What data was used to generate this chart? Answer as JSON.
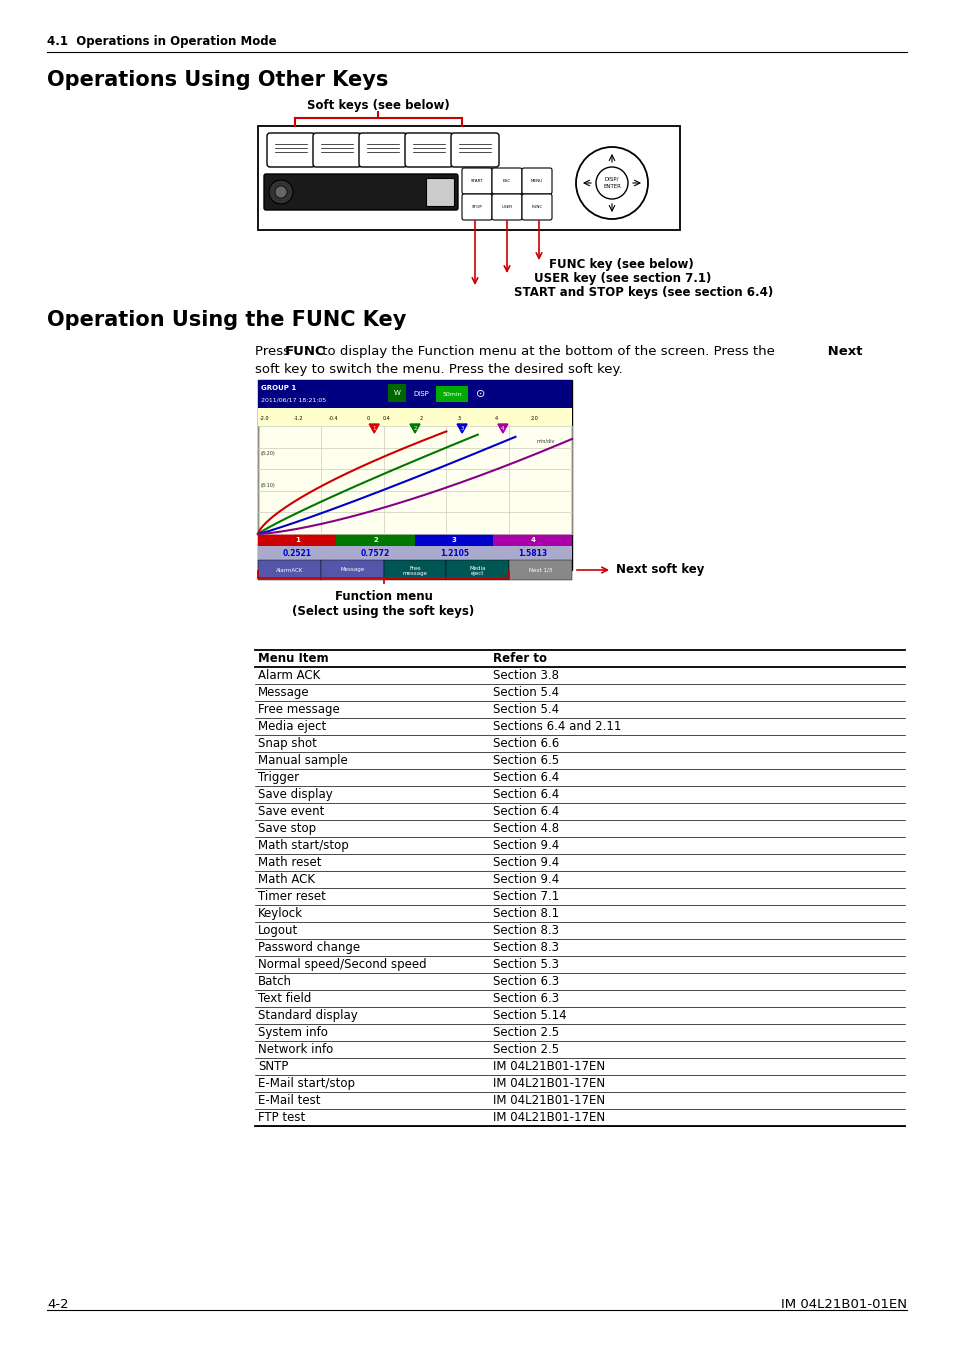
{
  "page_header": "4.1  Operations in Operation Mode",
  "section1_title": "Operations Using Other Keys",
  "section2_title": "Operation Using the FUNC Key",
  "label_softkeys": "Soft keys (see below)",
  "label_func": "FUNC key (see below)",
  "label_user": "USER key (see section 7.1)",
  "label_start_stop": "START and STOP keys (see section 6.4)",
  "label_next_softkey": "Next soft key",
  "label_function_menu": "Function menu\n(Select using the soft keys)",
  "table_header": [
    "Menu Item",
    "Refer to"
  ],
  "table_rows": [
    [
      "Alarm ACK",
      "Section 3.8"
    ],
    [
      "Message",
      "Section 5.4"
    ],
    [
      "Free message",
      "Section 5.4"
    ],
    [
      "Media eject",
      "Sections 6.4 and 2.11"
    ],
    [
      "Snap shot",
      "Section 6.6"
    ],
    [
      "Manual sample",
      "Section 6.5"
    ],
    [
      "Trigger",
      "Section 6.4"
    ],
    [
      "Save display",
      "Section 6.4"
    ],
    [
      "Save event",
      "Section 6.4"
    ],
    [
      "Save stop",
      "Section 4.8"
    ],
    [
      "Math start/stop",
      "Section 9.4"
    ],
    [
      "Math reset",
      "Section 9.4"
    ],
    [
      "Math ACK",
      "Section 9.4"
    ],
    [
      "Timer reset",
      "Section 7.1"
    ],
    [
      "Keylock",
      "Section 8.1"
    ],
    [
      "Logout",
      "Section 8.3"
    ],
    [
      "Password change",
      "Section 8.3"
    ],
    [
      "Normal speed/Second speed",
      "Section 5.3"
    ],
    [
      "Batch",
      "Section 6.3"
    ],
    [
      "Text field",
      "Section 6.3"
    ],
    [
      "Standard display",
      "Section 5.14"
    ],
    [
      "System info",
      "Section 2.5"
    ],
    [
      "Network info",
      "Section 2.5"
    ],
    [
      "SNTP",
      "IM 04L21B01-17EN"
    ],
    [
      "E-Mail start/stop",
      "IM 04L21B01-17EN"
    ],
    [
      "E-Mail test",
      "IM 04L21B01-17EN"
    ],
    [
      "FTP test",
      "IM 04L21B01-17EN"
    ]
  ],
  "footer_left": "4-2",
  "footer_right": "IM 04L21B01-01EN",
  "bg_color": "#ffffff",
  "text_color": "#000000",
  "red_color": "#cc0000"
}
